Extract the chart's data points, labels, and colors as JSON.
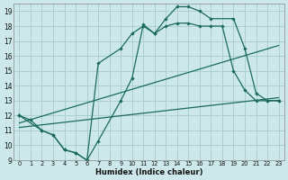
{
  "bg_color": "#cce8ea",
  "grid_color": "#aacfcf",
  "line_color": "#1a6b5a",
  "xlabel": "Humidex (Indice chaleur)",
  "xlim": [
    -0.5,
    23.5
  ],
  "ylim": [
    9,
    19.5
  ],
  "xticks": [
    0,
    1,
    2,
    3,
    4,
    5,
    6,
    7,
    8,
    9,
    10,
    11,
    12,
    13,
    14,
    15,
    16,
    17,
    18,
    19,
    20,
    21,
    22,
    23
  ],
  "yticks": [
    9,
    10,
    11,
    12,
    13,
    14,
    15,
    16,
    17,
    18,
    19
  ],
  "line1_x": [
    0,
    2,
    3,
    4,
    5,
    6,
    7,
    9,
    10,
    11,
    12,
    13,
    14,
    15,
    16,
    17,
    19,
    20,
    21,
    22,
    23
  ],
  "line1_y": [
    12,
    11,
    10.7,
    9.7,
    9.5,
    9.0,
    15.5,
    16.5,
    17.5,
    18.0,
    17.5,
    18.5,
    19.3,
    19.3,
    19.0,
    18.5,
    18.5,
    16.5,
    13.5,
    13.0,
    13.0
  ],
  "line2_x": [
    0,
    1,
    2,
    3,
    4,
    5,
    6,
    7,
    9,
    10,
    11,
    12,
    13,
    14,
    15,
    16,
    17,
    18,
    19,
    20,
    21,
    22,
    23
  ],
  "line2_y": [
    12,
    11.7,
    11.0,
    10.7,
    9.7,
    9.5,
    9.0,
    10.3,
    13.0,
    14.5,
    18.1,
    17.5,
    18.0,
    18.2,
    18.2,
    18.0,
    18.0,
    18.0,
    15.0,
    13.7,
    13.0,
    13.0,
    13.0
  ],
  "line3_x": [
    0,
    23
  ],
  "line3_y": [
    11.5,
    16.7
  ],
  "line4_x": [
    0,
    23
  ],
  "line4_y": [
    11.2,
    13.2
  ]
}
